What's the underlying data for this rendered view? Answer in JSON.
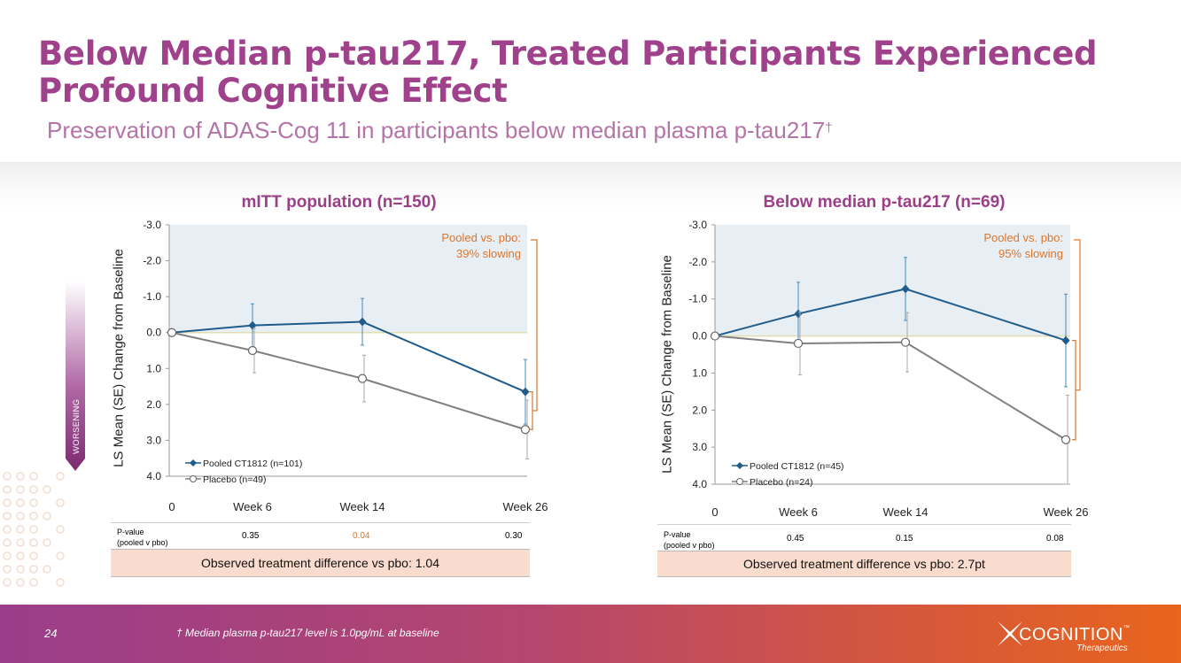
{
  "header": {
    "title": "Below Median p-tau217, Treated Participants Experienced Profound Cognitive Effect",
    "subtitle": "Preservation of ADAS-Cog 11 in participants below median plasma p-tau217",
    "subtitle_mark": "†"
  },
  "worsening_label": "WORSENING",
  "colors": {
    "brand": "#a0418c",
    "treated": "#1f5c8c",
    "placebo": "#808080",
    "annotation": "#d9762e",
    "shade": "#e7eff4"
  },
  "chart_data": [
    {
      "type": "line",
      "title": "mITT population (n=150)",
      "ylabel": "LS Mean (SE) Change from Baseline",
      "xlabel": "",
      "ylim": [
        -3.0,
        4.0
      ],
      "y_inverted": true,
      "ytick_labels": [
        "-3.0",
        "-2.0",
        "-1.0",
        "0.0",
        "1.0",
        "2.0",
        "3.0",
        "4.0"
      ],
      "x": [
        0,
        6,
        14,
        26
      ],
      "x_tick_labels": [
        "0",
        "Week 6",
        "Week 14",
        "Week 26"
      ],
      "series": [
        {
          "name": "Pooled CT1812 (n=101)",
          "marker": "diamond",
          "values": [
            0,
            -0.2,
            -0.3,
            1.65
          ],
          "se": [
            0,
            0.6,
            0.65,
            0.9
          ]
        },
        {
          "name": "Placebo (n=49)",
          "marker": "circle",
          "values": [
            0,
            0.5,
            1.28,
            2.7
          ],
          "se": [
            0,
            0.62,
            0.65,
            0.82
          ]
        }
      ],
      "annotation": {
        "line1": "Pooled vs. pbo:",
        "line2": "39% slowing"
      },
      "pvalue_label": {
        "line1": "P-value",
        "line2": "(pooled v pbo)"
      },
      "pvalues": [
        "0.35",
        "0.04",
        "0.30"
      ],
      "highlight_pvalue_index": 1,
      "difference_text": "Observed treatment difference vs pbo: 1.04"
    },
    {
      "type": "line",
      "title": "Below median p-tau217 (n=69)",
      "ylabel": "LS Mean (SE) Change from Baseline",
      "xlabel": "",
      "ylim": [
        -3.0,
        4.0
      ],
      "y_inverted": true,
      "ytick_labels": [
        "-3.0",
        "-2.0",
        "-1.0",
        "0.0",
        "1.0",
        "2.0",
        "3.0",
        "4.0"
      ],
      "x": [
        0,
        6,
        14,
        26
      ],
      "x_tick_labels": [
        "0",
        "Week 6",
        "Week 14",
        "Week 26"
      ],
      "series": [
        {
          "name": "Pooled CT1812 (n=45)",
          "marker": "diamond",
          "values": [
            0,
            -0.6,
            -1.27,
            0.12
          ],
          "se": [
            0,
            0.85,
            0.85,
            1.25
          ]
        },
        {
          "name": "Placebo (n=24)",
          "marker": "circle",
          "values": [
            0,
            0.2,
            0.17,
            2.8
          ],
          "se": [
            0,
            0.85,
            0.8,
            1.2
          ]
        }
      ],
      "annotation": {
        "line1": "Pooled vs. pbo:",
        "line2": "95% slowing"
      },
      "pvalue_label": {
        "line1": "P-value",
        "line2": "(pooled v pbo)"
      },
      "pvalues": [
        "0.45",
        "0.15",
        "0.08"
      ],
      "highlight_pvalue_index": -1,
      "difference_text": "Observed treatment difference vs pbo: 2.7pt"
    }
  ],
  "footer": {
    "page_number": "24",
    "footnote": "† Median plasma p-tau217 level is 1.0pg/mL at baseline",
    "logo_text": "COGNITION",
    "logo_tm": "™",
    "logo_sub": "Therapeutics"
  }
}
